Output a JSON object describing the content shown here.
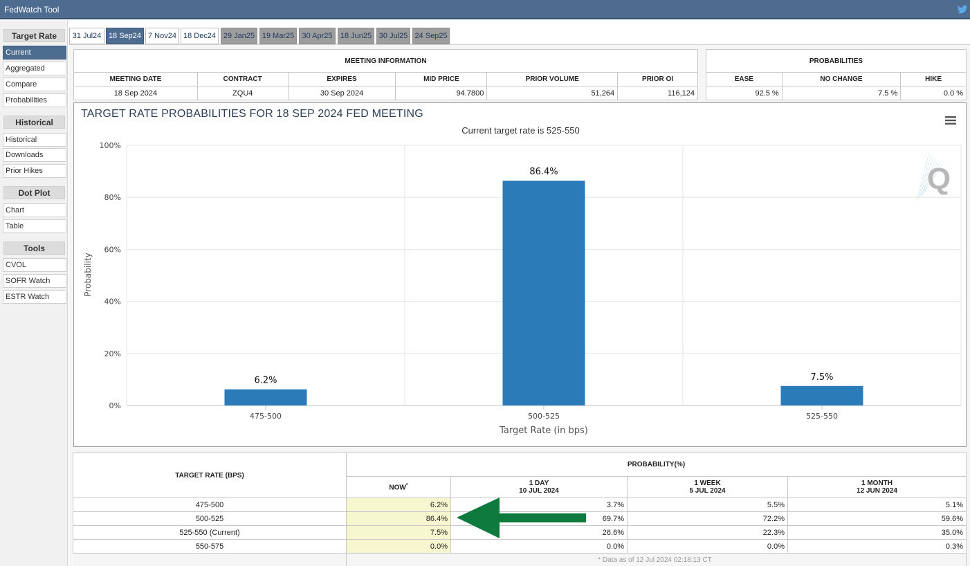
{
  "window": {
    "title": "FedWatch Tool",
    "twitter_icon": "twitter-icon"
  },
  "sidebar": {
    "sections": [
      {
        "label": "Target Rate",
        "items": [
          "Current",
          "Aggregated",
          "Compare",
          "Probabilities"
        ]
      },
      {
        "label": "Historical",
        "items": [
          "Historical",
          "Downloads",
          "Prior Hikes"
        ]
      },
      {
        "label": "Dot Plot",
        "items": [
          "Chart",
          "Table"
        ]
      },
      {
        "label": "Tools",
        "items": [
          "CVOL",
          "SOFR Watch",
          "ESTR Watch"
        ]
      }
    ],
    "active_item": "Current"
  },
  "tabs": [
    {
      "label": "31 Jul24",
      "state": "normal"
    },
    {
      "label": "18 Sep24",
      "state": "active"
    },
    {
      "label": "7 Nov24",
      "state": "normal"
    },
    {
      "label": "18 Dec24",
      "state": "normal"
    },
    {
      "label": "29 Jan25",
      "state": "future"
    },
    {
      "label": "19 Mar25",
      "state": "future"
    },
    {
      "label": "30 Apr25",
      "state": "future"
    },
    {
      "label": "18 Jun25",
      "state": "future"
    },
    {
      "label": "30 Jul25",
      "state": "future"
    },
    {
      "label": "24 Sep25",
      "state": "future"
    }
  ],
  "meeting_info": {
    "heading": "MEETING INFORMATION",
    "columns": [
      "MEETING DATE",
      "CONTRACT",
      "EXPIRES",
      "MID PRICE",
      "PRIOR VOLUME",
      "PRIOR OI"
    ],
    "row": [
      "18 Sep 2024",
      "ZQU4",
      "30 Sep 2024",
      "94.7800",
      "51,264",
      "116,124"
    ]
  },
  "probabilities": {
    "heading": "PROBABILITIES",
    "columns": [
      "EASE",
      "NO CHANGE",
      "HIKE"
    ],
    "row": [
      "92.5 %",
      "7.5 %",
      "0.0 %"
    ]
  },
  "chart_data": {
    "type": "bar",
    "title": "TARGET RATE PROBABILITIES FOR 18 SEP 2024 FED MEETING",
    "subtitle": "Current target rate is 525-550",
    "xlabel": "Target Rate (in bps)",
    "ylabel": "Probability",
    "categories": [
      "475-500",
      "500-525",
      "525-550"
    ],
    "values": [
      6.2,
      86.4,
      7.5
    ],
    "value_labels": [
      "6.2%",
      "86.4%",
      "7.5%"
    ],
    "ylim": [
      0,
      100
    ],
    "yticks": [
      0,
      20,
      40,
      60,
      80,
      100
    ],
    "ytick_labels": [
      "0%",
      "20%",
      "40%",
      "60%",
      "80%",
      "100%"
    ],
    "grid": true,
    "legend": "none",
    "bar_color": "#2b7bb9",
    "watermark_letter": "Q"
  },
  "prob_table": {
    "row_header": "TARGET RATE (BPS)",
    "group_header": "PROBABILITY(%)",
    "columns": [
      {
        "line1": "NOW",
        "line2": "",
        "marker": "*"
      },
      {
        "line1": "1 DAY",
        "line2": "10 JUL 2024",
        "marker": ""
      },
      {
        "line1": "1 WEEK",
        "line2": "5 JUL 2024",
        "marker": ""
      },
      {
        "line1": "1 MONTH",
        "line2": "12 JUN 2024",
        "marker": ""
      }
    ],
    "rows": [
      {
        "rate": "475-500",
        "values": [
          "6.2%",
          "3.7%",
          "5.5%",
          "5.1%"
        ]
      },
      {
        "rate": "500-525",
        "values": [
          "86.4%",
          "69.7%",
          "72.2%",
          "59.6%"
        ]
      },
      {
        "rate": "525-550 (Current)",
        "values": [
          "7.5%",
          "26.6%",
          "22.3%",
          "35.0%"
        ]
      },
      {
        "rate": "550-575",
        "values": [
          "0.0%",
          "0.0%",
          "0.0%",
          "0.3%"
        ]
      }
    ],
    "footnote": "* Data as of 12 Jul 2024 02:18:13 CT",
    "highlight_color": "#f7f7cf",
    "arrow_color": "#0f7a3e"
  },
  "colors": {
    "titlebar": "#4e6c8f",
    "active_tab": "#4e6c8f",
    "future_tab": "#9d9d9d"
  }
}
